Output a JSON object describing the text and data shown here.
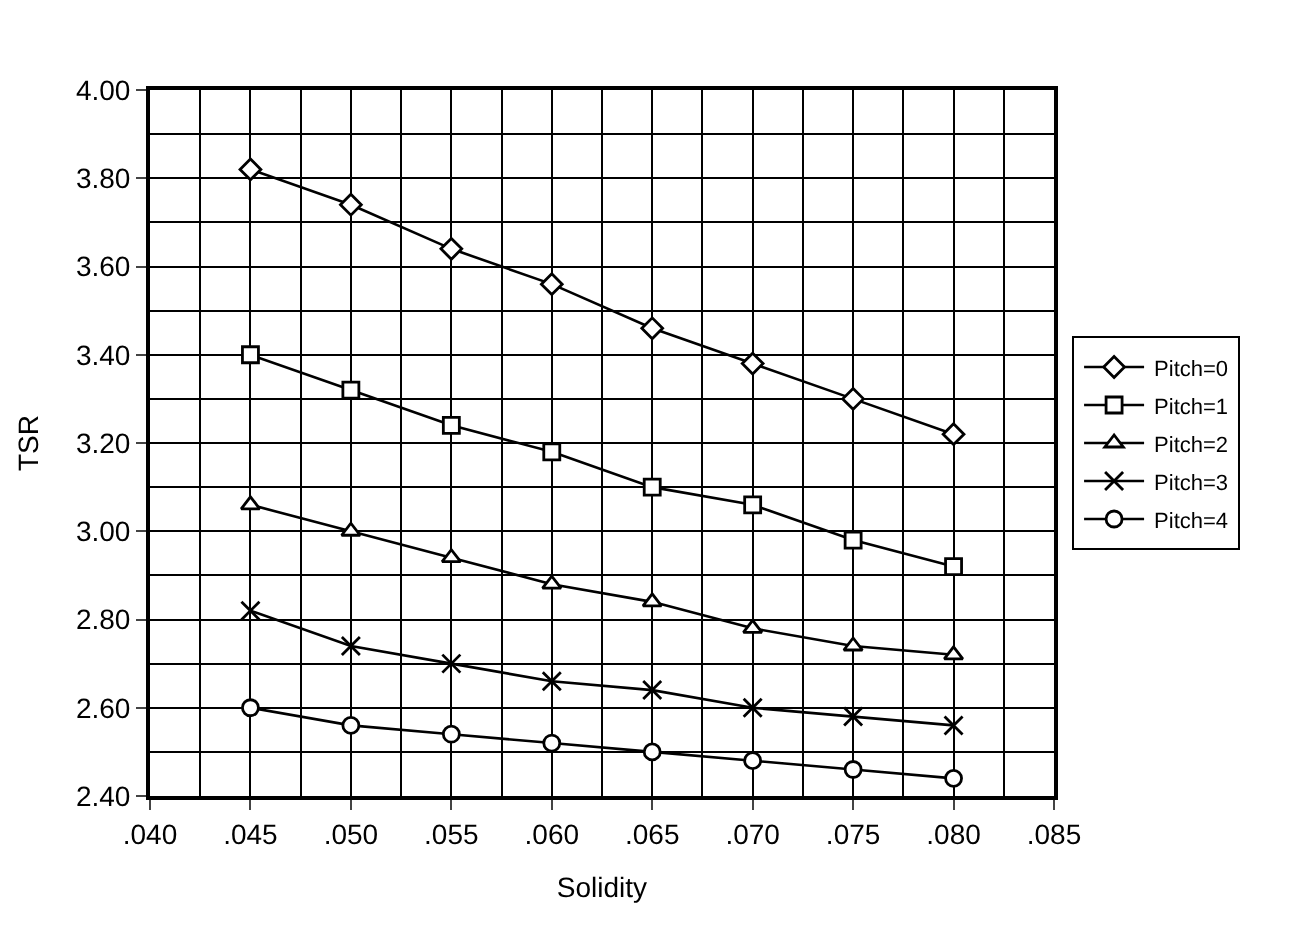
{
  "chart_data": {
    "type": "line",
    "xlabel": "Solidity",
    "ylabel": "TSR",
    "x": [
      0.045,
      0.05,
      0.055,
      0.06,
      0.065,
      0.07,
      0.075,
      0.08
    ],
    "series": [
      {
        "name": "Pitch=0",
        "color": "#000000",
        "marker": "diamond",
        "values": [
          3.82,
          3.74,
          3.64,
          3.56,
          3.46,
          3.38,
          3.3,
          3.22
        ]
      },
      {
        "name": "Pitch=1",
        "color": "#000000",
        "marker": "square",
        "values": [
          3.4,
          3.32,
          3.24,
          3.18,
          3.1,
          3.06,
          2.98,
          2.92
        ]
      },
      {
        "name": "Pitch=2",
        "color": "#000000",
        "marker": "triangle",
        "values": [
          3.06,
          3.0,
          2.94,
          2.88,
          2.84,
          2.78,
          2.74,
          2.72
        ]
      },
      {
        "name": "Pitch=3",
        "color": "#000000",
        "marker": "cross",
        "values": [
          2.82,
          2.74,
          2.7,
          2.66,
          2.64,
          2.6,
          2.58,
          2.56
        ]
      },
      {
        "name": "Pitch=4",
        "color": "#000000",
        "marker": "circle",
        "values": [
          2.6,
          2.56,
          2.54,
          2.52,
          2.5,
          2.48,
          2.46,
          2.44
        ]
      }
    ],
    "xlim": [
      0.04,
      0.085
    ],
    "xticks": [
      {
        "value": 0.04,
        "label": ".040"
      },
      {
        "value": 0.045,
        "label": ".045"
      },
      {
        "value": 0.05,
        "label": ".050"
      },
      {
        "value": 0.055,
        "label": ".055"
      },
      {
        "value": 0.06,
        "label": ".060"
      },
      {
        "value": 0.065,
        "label": ".065"
      },
      {
        "value": 0.07,
        "label": ".070"
      },
      {
        "value": 0.075,
        "label": ".075"
      },
      {
        "value": 0.08,
        "label": ".080"
      },
      {
        "value": 0.085,
        "label": ".085"
      }
    ],
    "ylim": [
      2.4,
      4.0
    ],
    "yticks": [
      {
        "value": 2.4,
        "label": "2.40"
      },
      {
        "value": 2.6,
        "label": "2.60"
      },
      {
        "value": 2.8,
        "label": "2.80"
      },
      {
        "value": 3.0,
        "label": "3.00"
      },
      {
        "value": 3.2,
        "label": "3.20"
      },
      {
        "value": 3.4,
        "label": "3.40"
      },
      {
        "value": 3.6,
        "label": "3.60"
      },
      {
        "value": 3.8,
        "label": "3.80"
      },
      {
        "value": 4.0,
        "label": "4.00"
      }
    ],
    "grid": true,
    "legend": "right",
    "line_style": "solid"
  }
}
